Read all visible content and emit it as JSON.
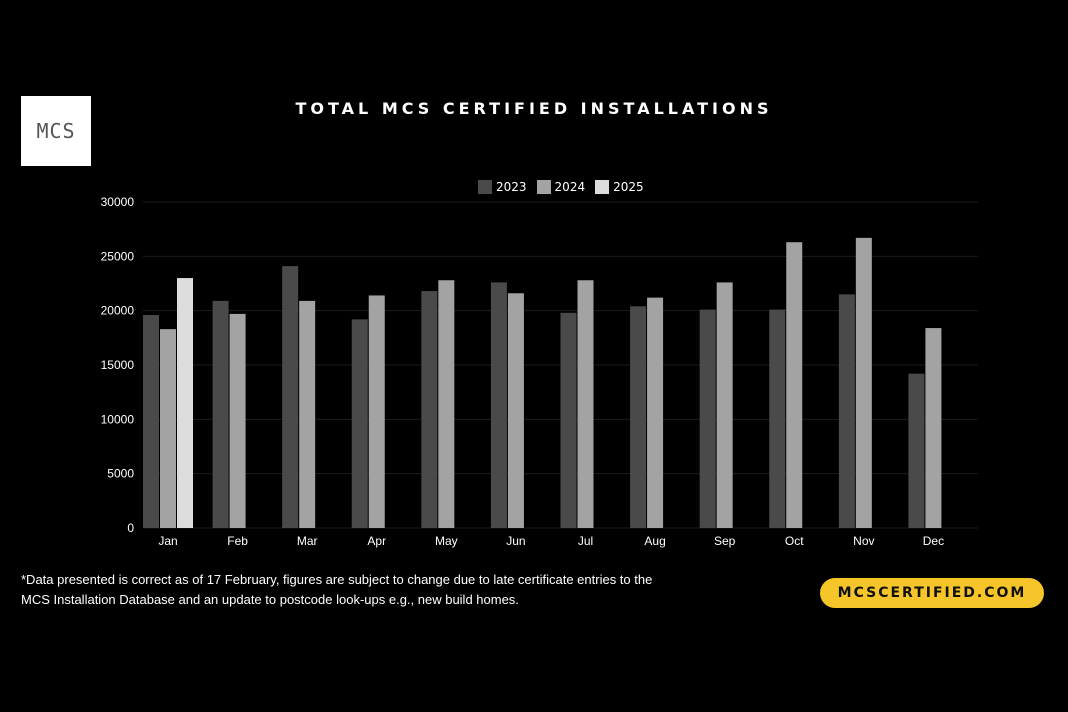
{
  "logo": {
    "text": "MCS"
  },
  "cta": {
    "label": "MCSCERTIFIED.COM"
  },
  "footnote": {
    "line1": "*Data presented is correct as of 17 February, figures are subject to change due to late certificate entries to the",
    "line2": "MCS Installation Database and an update to postcode look-ups e.g., new build homes."
  },
  "colors": {
    "background": "#000000",
    "series_2023": "#4a4a4a",
    "series_2024": "#a3a3a3",
    "series_2025": "#dcdcdc",
    "cta": "#f5c52a"
  },
  "chart_data": {
    "type": "bar",
    "title": "TOTAL MCS CERTIFIED INSTALLATIONS",
    "xlabel": "",
    "ylabel": "",
    "categories": [
      "Jan",
      "Feb",
      "Mar",
      "Apr",
      "May",
      "Jun",
      "Jul",
      "Aug",
      "Sep",
      "Oct",
      "Nov",
      "Dec"
    ],
    "ylim": [
      0,
      30000
    ],
    "yticks": [
      0,
      5000,
      10000,
      15000,
      20000,
      25000,
      30000
    ],
    "grid": true,
    "legend_position": "top-center",
    "series": [
      {
        "name": "2023",
        "values": [
          19600,
          20900,
          24100,
          19200,
          21800,
          22600,
          19800,
          20400,
          20100,
          20100,
          21500,
          14200
        ]
      },
      {
        "name": "2024",
        "values": [
          18300,
          19700,
          20900,
          21400,
          22800,
          21600,
          22800,
          21200,
          22600,
          26300,
          26700,
          18400
        ]
      },
      {
        "name": "2025",
        "values": [
          23000,
          null,
          null,
          null,
          null,
          null,
          null,
          null,
          null,
          null,
          null,
          null
        ]
      }
    ]
  }
}
